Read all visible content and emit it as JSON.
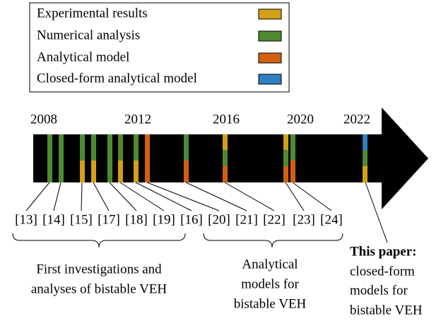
{
  "legend": [
    {
      "label": "Experimental results"
    },
    {
      "label": "Numerical analysis"
    },
    {
      "label": "Analytical model"
    },
    {
      "label": "Closed-form analytical model"
    }
  ],
  "years": [
    "2008",
    "2012",
    "2016",
    "2020",
    "2022"
  ],
  "refs": [
    "[13]",
    "[14]",
    "[15]",
    "[17]",
    "[18]",
    "[19]",
    "[16]",
    "[20]",
    "[21]",
    "[22]",
    "[23]",
    "[24]"
  ],
  "groups": [
    {
      "lines": [
        "First investigations and",
        "analyses of bistable VEH"
      ]
    },
    {
      "lines": [
        "Analytical",
        "models for",
        "bistable VEH"
      ]
    }
  ],
  "annotation": {
    "title": "This paper:",
    "lines": [
      "closed-form",
      "models for",
      "bistable VEH"
    ]
  }
}
